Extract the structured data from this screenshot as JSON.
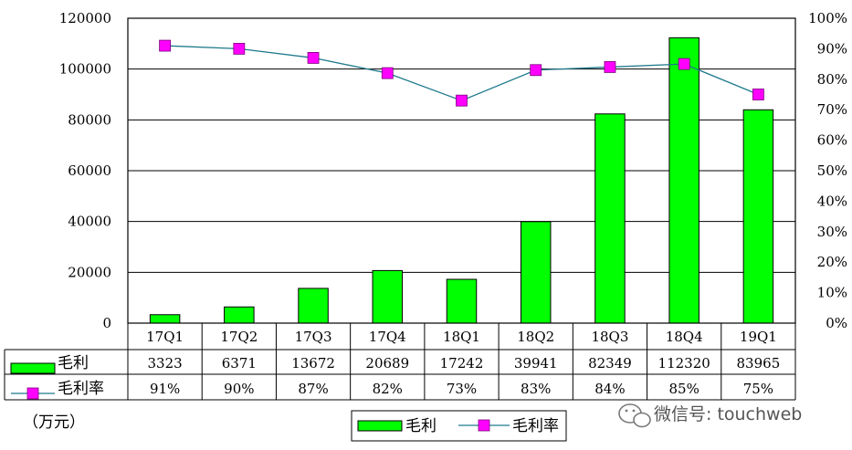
{
  "chart_data": {
    "type": "bar+line",
    "categories": [
      "17Q1",
      "17Q2",
      "17Q3",
      "17Q4",
      "18Q1",
      "18Q2",
      "18Q3",
      "18Q4",
      "19Q1"
    ],
    "series": [
      {
        "name": "毛利",
        "type": "bar",
        "axis": "left",
        "values": [
          3323,
          6371,
          13672,
          20689,
          17242,
          39941,
          82349,
          112320,
          83965
        ],
        "labels": [
          "3323",
          "6371",
          "13672",
          "20689",
          "17242",
          "39941",
          "82349",
          "112320",
          "83965"
        ],
        "color": "#00ff00"
      },
      {
        "name": "毛利率",
        "type": "line",
        "axis": "right",
        "values": [
          91,
          90,
          87,
          82,
          73,
          83,
          84,
          85,
          75
        ],
        "labels": [
          "91%",
          "90%",
          "87%",
          "82%",
          "73%",
          "83%",
          "84%",
          "85%",
          "75%"
        ],
        "color": "#1f7a8c",
        "marker_color": "#ff00ff"
      }
    ],
    "y_left": {
      "lim": [
        0,
        120000
      ],
      "ticks": [
        "0",
        "20000",
        "40000",
        "60000",
        "80000",
        "100000",
        "120000"
      ]
    },
    "y_right": {
      "lim": [
        0,
        100
      ],
      "ticks": [
        "0%",
        "10%",
        "20%",
        "30%",
        "40%",
        "50%",
        "60%",
        "70%",
        "80%",
        "90%",
        "100%"
      ]
    },
    "unit_label": "（万元）",
    "grid": true,
    "legend": "bottom",
    "data_table": true
  },
  "watermark": "微信号: touchweb"
}
